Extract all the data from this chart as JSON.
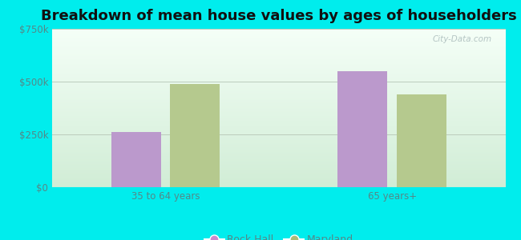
{
  "title": "Breakdown of mean house values by ages of householders",
  "categories": [
    "35 to 64 years",
    "65 years+"
  ],
  "rock_hall_values": [
    262000,
    550000
  ],
  "maryland_values": [
    490000,
    440000
  ],
  "rock_hall_color": "#bb99cc",
  "maryland_color": "#b5c98e",
  "background_color": "#00eded",
  "ylim": [
    0,
    750000
  ],
  "yticks": [
    0,
    250000,
    500000,
    750000
  ],
  "ytick_labels": [
    "$0",
    "$250k",
    "$500k",
    "$750k"
  ],
  "grid_color": "#bbccbb",
  "title_fontsize": 13,
  "tick_fontsize": 8.5,
  "legend_fontsize": 9,
  "bar_width": 0.22,
  "watermark": "City-Data.com",
  "tick_color": "#558888",
  "legend_marker_color_rh": "#cc88cc",
  "legend_marker_color_md": "#aabb77"
}
